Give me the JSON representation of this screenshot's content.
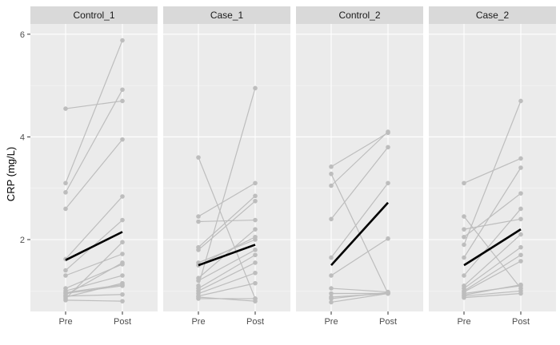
{
  "chart_data": {
    "type": "line",
    "ylabel": "CRP (mg/L)",
    "xlabel": "",
    "x_categories": [
      "Pre",
      "Post"
    ],
    "y_ticks": [
      2,
      4,
      6
    ],
    "ylim": [
      0.6,
      6.2
    ],
    "grid": true,
    "legend": "none",
    "colors": {
      "panel_bg": "#ebebeb",
      "strip_bg": "#d9d9d9",
      "grid_major": "#ffffff",
      "individual": "#bdbdbd",
      "mean": "#000000"
    },
    "panels": [
      {
        "name": "Control_1",
        "mean": [
          1.6,
          2.15
        ],
        "subjects": [
          [
            4.55,
            4.7
          ],
          [
            3.1,
            5.88
          ],
          [
            2.92,
            4.92
          ],
          [
            2.6,
            3.95
          ],
          [
            1.62,
            2.84
          ],
          [
            1.4,
            2.38
          ],
          [
            1.3,
            1.72
          ],
          [
            1.05,
            1.52
          ],
          [
            1.0,
            1.3
          ],
          [
            0.97,
            1.12
          ],
          [
            0.95,
            1.1
          ],
          [
            0.92,
            1.55
          ],
          [
            0.9,
            0.93
          ],
          [
            0.88,
            1.15
          ],
          [
            0.82,
            0.8
          ],
          [
            0.85,
            1.95
          ]
        ]
      },
      {
        "name": "Case_1",
        "mean": [
          1.5,
          1.9
        ],
        "subjects": [
          [
            3.6,
            0.85
          ],
          [
            2.45,
            3.1
          ],
          [
            2.35,
            2.38
          ],
          [
            1.85,
            2.85
          ],
          [
            1.8,
            2.75
          ],
          [
            1.55,
            2.0
          ],
          [
            1.5,
            2.05
          ],
          [
            1.25,
            2.2
          ],
          [
            1.2,
            1.8
          ],
          [
            1.1,
            4.95
          ],
          [
            1.05,
            1.7
          ],
          [
            1.0,
            1.55
          ],
          [
            0.95,
            1.35
          ],
          [
            0.9,
            1.15
          ],
          [
            0.88,
            0.8
          ],
          [
            0.85,
            0.85
          ]
        ]
      },
      {
        "name": "Control_2",
        "mean": [
          1.5,
          2.72
        ],
        "subjects": [
          [
            3.42,
            4.08
          ],
          [
            3.28,
            0.95
          ],
          [
            3.05,
            4.1
          ],
          [
            2.4,
            3.8
          ],
          [
            1.65,
            3.1
          ],
          [
            1.3,
            2.02
          ],
          [
            1.05,
            0.98
          ],
          [
            0.95,
            0.95
          ],
          [
            0.88,
            0.95
          ],
          [
            0.85,
            0.97
          ],
          [
            0.78,
            0.95
          ]
        ]
      },
      {
        "name": "Case_2",
        "mean": [
          1.5,
          2.2
        ],
        "subjects": [
          [
            3.1,
            3.58
          ],
          [
            2.45,
            1.05
          ],
          [
            2.2,
            2.4
          ],
          [
            2.05,
            2.9
          ],
          [
            1.9,
            4.7
          ],
          [
            1.65,
            3.4
          ],
          [
            1.3,
            2.6
          ],
          [
            1.1,
            2.1
          ],
          [
            1.05,
            1.85
          ],
          [
            1.0,
            1.7
          ],
          [
            0.98,
            1.58
          ],
          [
            0.95,
            1.1
          ],
          [
            0.92,
            1.12
          ],
          [
            0.9,
            1.0
          ],
          [
            0.87,
            0.95
          ]
        ]
      }
    ]
  }
}
